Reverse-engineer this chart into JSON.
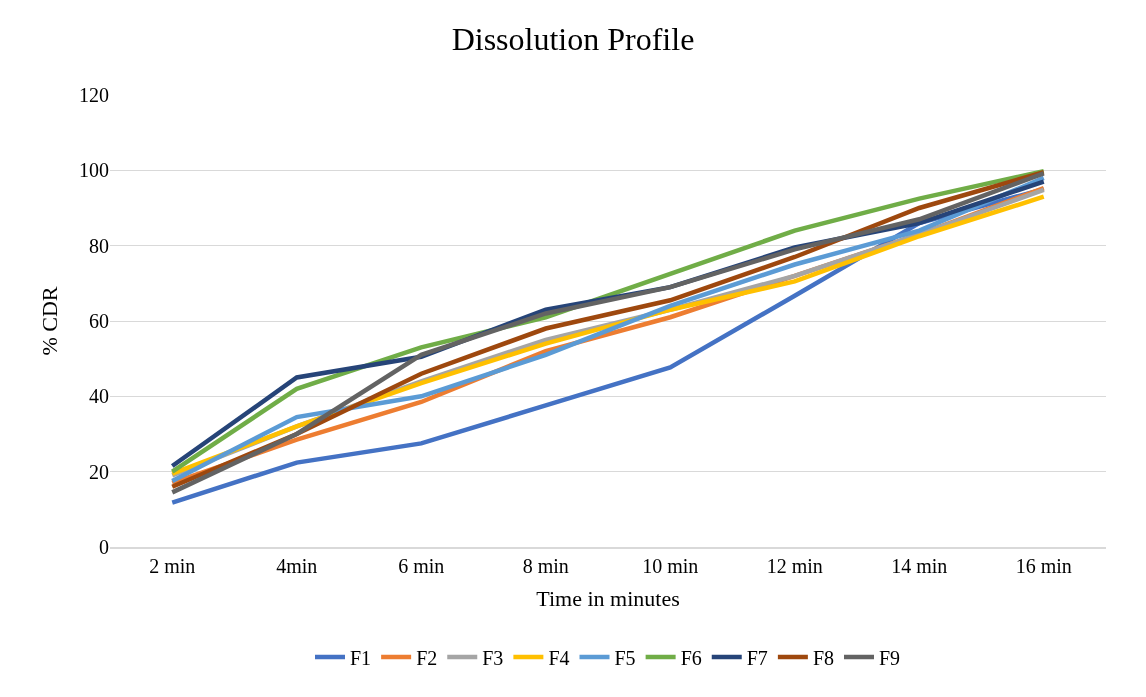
{
  "chart_data": {
    "type": "line",
    "title": "Dissolution Profile",
    "xlabel": "Time in minutes",
    "ylabel": "% CDR",
    "categories": [
      "2 min",
      "4min",
      "6 min",
      "8 min",
      "10 min",
      "12 min",
      "14 min",
      "16 min"
    ],
    "ylim": [
      0,
      120
    ],
    "yticks": [
      0,
      20,
      40,
      60,
      80,
      100,
      120
    ],
    "grid": "y",
    "legend": "bottom",
    "marker": "none",
    "line_style": "solid",
    "series": [
      {
        "name": "F1",
        "color": "#4472c4",
        "values": [
          11.8,
          22.4,
          27.5,
          37.6,
          47.7,
          66.7,
          86,
          95
        ]
      },
      {
        "name": "F2",
        "color": "#ed7d31",
        "values": [
          17,
          28.5,
          38.5,
          52,
          61,
          72,
          83,
          95.3
        ]
      },
      {
        "name": "F3",
        "color": "#a5a5a5",
        "values": [
          19,
          32,
          44,
          55,
          63,
          72,
          83,
          94.8
        ]
      },
      {
        "name": "F4",
        "color": "#ffc000",
        "values": [
          19.5,
          32,
          43.5,
          54,
          63,
          70.5,
          82.5,
          93
        ]
      },
      {
        "name": "F5",
        "color": "#5b9bd5",
        "values": [
          17.5,
          34.5,
          40,
          51,
          64,
          75,
          84,
          98
        ]
      },
      {
        "name": "F6",
        "color": "#70ad47",
        "values": [
          20,
          42,
          53,
          61,
          72.5,
          84,
          92.5,
          99.8
        ]
      },
      {
        "name": "F7",
        "color": "#264478",
        "values": [
          21.5,
          45,
          50.5,
          63,
          69,
          79.5,
          86,
          97
        ]
      },
      {
        "name": "F8",
        "color": "#9e480e",
        "values": [
          16,
          30,
          46,
          58,
          65.5,
          77,
          90,
          99.5
        ]
      },
      {
        "name": "F9",
        "color": "#636363",
        "values": [
          14.5,
          30,
          51,
          62,
          69,
          79,
          87,
          99.2
        ]
      }
    ]
  }
}
